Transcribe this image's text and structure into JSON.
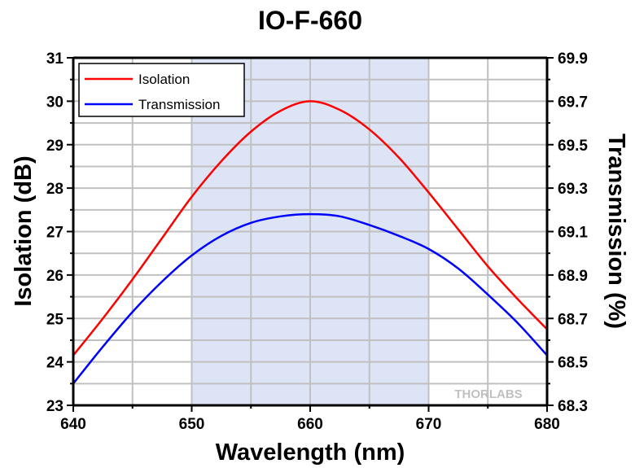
{
  "chart_data": {
    "type": "line",
    "title": "IO-F-660",
    "xlabel": "Wavelength (nm)",
    "ylabel": "Isolation (dB)",
    "y2label": "Transmission (%)",
    "xlim": [
      640,
      680
    ],
    "ylim": [
      23,
      31
    ],
    "y2lim": [
      68.3,
      69.9
    ],
    "xticks": [
      640,
      650,
      660,
      670,
      680
    ],
    "yticks": [
      23,
      24,
      25,
      26,
      27,
      28,
      29,
      30,
      31
    ],
    "y2ticks": [
      "68.3",
      "68.5",
      "68.7",
      "68.9",
      "69.1",
      "69.3",
      "69.5",
      "69.7",
      "69.9"
    ],
    "grid": true,
    "shaded_region": [
      650,
      670
    ],
    "shaded_color": "#dce4f5",
    "legend_position": "top-left",
    "watermark": "THORLABS",
    "x": [
      640,
      642.5,
      645,
      647.5,
      650,
      652.5,
      655,
      657.5,
      660,
      662.5,
      665,
      667.5,
      670,
      672.5,
      675,
      677.5,
      680
    ],
    "series": [
      {
        "name": "Isolation",
        "axis": "left",
        "color": "#ff0000",
        "values": [
          24.15,
          25.0,
          25.9,
          26.85,
          27.8,
          28.62,
          29.3,
          29.78,
          30.0,
          29.8,
          29.35,
          28.7,
          27.9,
          27.05,
          26.2,
          25.45,
          24.75
        ]
      },
      {
        "name": "Transmission",
        "axis": "right",
        "color": "#0000ff",
        "values": [
          68.4,
          68.57,
          68.73,
          68.87,
          68.99,
          69.08,
          69.14,
          69.17,
          69.18,
          69.17,
          69.13,
          69.08,
          69.02,
          68.93,
          68.81,
          68.68,
          68.53
        ]
      }
    ]
  }
}
